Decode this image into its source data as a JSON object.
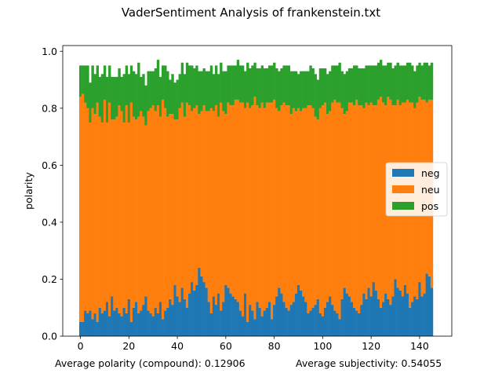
{
  "suptitle": "VaderSentiment Analysis of frankenstein.txt",
  "footer": {
    "polarity_label": "Average polarity (compound): 0.12906",
    "subjectivity_label": "Average subjectivity: 0.54055"
  },
  "chart_data": {
    "type": "bar",
    "stacked": true,
    "title": "VaderSentiment Analysis of frankenstein.txt",
    "xlabel": "",
    "ylabel": "polarity",
    "xlim": [
      -7.3,
      153.3
    ],
    "ylim": [
      0,
      1.02
    ],
    "xticks": [
      0,
      20,
      40,
      60,
      80,
      100,
      120,
      140
    ],
    "yticks": [
      0.0,
      0.2,
      0.4,
      0.6,
      0.8,
      1.0
    ],
    "ytick_labels": [
      "0.0",
      "0.2",
      "0.4",
      "0.6",
      "0.8",
      "1.0"
    ],
    "legend_position": "center-right",
    "grid": false,
    "colors": {
      "neg": "#1f77b4",
      "neu": "#ff7f0e",
      "pos": "#2ca02c"
    },
    "x": [
      0,
      1,
      2,
      3,
      4,
      5,
      6,
      7,
      8,
      9,
      10,
      11,
      12,
      13,
      14,
      15,
      16,
      17,
      18,
      19,
      20,
      21,
      22,
      23,
      24,
      25,
      26,
      27,
      28,
      29,
      30,
      31,
      32,
      33,
      34,
      35,
      36,
      37,
      38,
      39,
      40,
      41,
      42,
      43,
      44,
      45,
      46,
      47,
      48,
      49,
      50,
      51,
      52,
      53,
      54,
      55,
      56,
      57,
      58,
      59,
      60,
      61,
      62,
      63,
      64,
      65,
      66,
      67,
      68,
      69,
      70,
      71,
      72,
      73,
      74,
      75,
      76,
      77,
      78,
      79,
      80,
      81,
      82,
      83,
      84,
      85,
      86,
      87,
      88,
      89,
      90,
      91,
      92,
      93,
      94,
      95,
      96,
      97,
      98,
      99,
      100,
      101,
      102,
      103,
      104,
      105,
      106,
      107,
      108,
      109,
      110,
      111,
      112,
      113,
      114,
      115,
      116,
      117,
      118,
      119,
      120,
      121,
      122,
      123,
      124,
      125,
      126,
      127,
      128,
      129,
      130,
      131,
      132,
      133,
      134,
      135,
      136,
      137,
      138,
      139,
      140,
      141,
      142,
      143,
      144,
      145
    ],
    "series": [
      {
        "name": "neg",
        "values": [
          0.05,
          0.05,
          0.09,
          0.08,
          0.09,
          0.06,
          0.08,
          0.05,
          0.1,
          0.08,
          0.09,
          0.12,
          0.07,
          0.14,
          0.09,
          0.1,
          0.08,
          0.07,
          0.1,
          0.08,
          0.13,
          0.05,
          0.1,
          0.12,
          0.08,
          0.09,
          0.11,
          0.14,
          0.09,
          0.08,
          0.07,
          0.1,
          0.08,
          0.12,
          0.06,
          0.09,
          0.1,
          0.13,
          0.11,
          0.18,
          0.14,
          0.12,
          0.17,
          0.13,
          0.1,
          0.15,
          0.19,
          0.16,
          0.18,
          0.24,
          0.21,
          0.19,
          0.17,
          0.12,
          0.08,
          0.14,
          0.11,
          0.15,
          0.09,
          0.12,
          0.18,
          0.17,
          0.15,
          0.14,
          0.13,
          0.12,
          0.09,
          0.07,
          0.15,
          0.05,
          0.11,
          0.09,
          0.06,
          0.12,
          0.1,
          0.07,
          0.09,
          0.1,
          0.12,
          0.06,
          0.11,
          0.14,
          0.17,
          0.15,
          0.12,
          0.1,
          0.09,
          0.11,
          0.12,
          0.15,
          0.18,
          0.16,
          0.14,
          0.12,
          0.08,
          0.09,
          0.1,
          0.11,
          0.13,
          0.08,
          0.07,
          0.1,
          0.12,
          0.14,
          0.11,
          0.09,
          0.08,
          0.06,
          0.13,
          0.17,
          0.15,
          0.14,
          0.12,
          0.1,
          0.09,
          0.08,
          0.11,
          0.15,
          0.13,
          0.17,
          0.14,
          0.19,
          0.16,
          0.13,
          0.1,
          0.12,
          0.15,
          0.13,
          0.11,
          0.14,
          0.2,
          0.17,
          0.16,
          0.14,
          0.18,
          0.15,
          0.1,
          0.12,
          0.14,
          0.13,
          0.19,
          0.14,
          0.15,
          0.22,
          0.21,
          0.17
        ]
      },
      {
        "name": "neu",
        "values": [
          0.79,
          0.8,
          0.73,
          0.72,
          0.66,
          0.74,
          0.7,
          0.77,
          0.67,
          0.67,
          0.74,
          0.63,
          0.75,
          0.62,
          0.67,
          0.67,
          0.73,
          0.72,
          0.65,
          0.73,
          0.62,
          0.77,
          0.67,
          0.64,
          0.69,
          0.7,
          0.66,
          0.6,
          0.7,
          0.72,
          0.74,
          0.69,
          0.73,
          0.65,
          0.77,
          0.71,
          0.67,
          0.65,
          0.67,
          0.58,
          0.62,
          0.68,
          0.65,
          0.64,
          0.72,
          0.66,
          0.6,
          0.64,
          0.63,
          0.54,
          0.58,
          0.62,
          0.62,
          0.67,
          0.72,
          0.65,
          0.7,
          0.62,
          0.73,
          0.67,
          0.6,
          0.65,
          0.66,
          0.67,
          0.7,
          0.71,
          0.73,
          0.75,
          0.65,
          0.77,
          0.69,
          0.72,
          0.78,
          0.69,
          0.7,
          0.75,
          0.71,
          0.72,
          0.7,
          0.76,
          0.72,
          0.66,
          0.62,
          0.66,
          0.7,
          0.71,
          0.72,
          0.67,
          0.68,
          0.64,
          0.62,
          0.63,
          0.66,
          0.68,
          0.73,
          0.72,
          0.7,
          0.66,
          0.63,
          0.72,
          0.74,
          0.72,
          0.66,
          0.65,
          0.71,
          0.74,
          0.74,
          0.76,
          0.67,
          0.61,
          0.64,
          0.68,
          0.7,
          0.71,
          0.74,
          0.73,
          0.7,
          0.65,
          0.69,
          0.64,
          0.68,
          0.62,
          0.65,
          0.7,
          0.74,
          0.7,
          0.66,
          0.71,
          0.72,
          0.67,
          0.61,
          0.66,
          0.65,
          0.68,
          0.64,
          0.68,
          0.72,
          0.7,
          0.66,
          0.69,
          0.65,
          0.69,
          0.68,
          0.6,
          0.62,
          0.66
        ]
      },
      {
        "name": "pos",
        "values": [
          0.11,
          0.1,
          0.13,
          0.15,
          0.14,
          0.15,
          0.14,
          0.13,
          0.14,
          0.17,
          0.12,
          0.16,
          0.13,
          0.15,
          0.15,
          0.14,
          0.13,
          0.12,
          0.17,
          0.14,
          0.17,
          0.13,
          0.16,
          0.16,
          0.19,
          0.12,
          0.15,
          0.14,
          0.14,
          0.13,
          0.12,
          0.15,
          0.16,
          0.14,
          0.12,
          0.15,
          0.16,
          0.12,
          0.14,
          0.13,
          0.14,
          0.12,
          0.14,
          0.15,
          0.14,
          0.14,
          0.16,
          0.14,
          0.14,
          0.15,
          0.14,
          0.13,
          0.14,
          0.14,
          0.15,
          0.13,
          0.14,
          0.15,
          0.14,
          0.14,
          0.15,
          0.13,
          0.14,
          0.14,
          0.12,
          0.14,
          0.13,
          0.13,
          0.13,
          0.14,
          0.14,
          0.14,
          0.12,
          0.13,
          0.14,
          0.13,
          0.14,
          0.12,
          0.13,
          0.13,
          0.13,
          0.14,
          0.14,
          0.13,
          0.13,
          0.14,
          0.14,
          0.15,
          0.13,
          0.14,
          0.12,
          0.14,
          0.13,
          0.13,
          0.12,
          0.14,
          0.14,
          0.15,
          0.14,
          0.14,
          0.13,
          0.12,
          0.14,
          0.14,
          0.13,
          0.12,
          0.13,
          0.14,
          0.13,
          0.14,
          0.14,
          0.12,
          0.12,
          0.14,
          0.12,
          0.13,
          0.13,
          0.14,
          0.13,
          0.14,
          0.13,
          0.14,
          0.14,
          0.13,
          0.13,
          0.13,
          0.14,
          0.12,
          0.13,
          0.13,
          0.14,
          0.13,
          0.14,
          0.13,
          0.13,
          0.13,
          0.14,
          0.13,
          0.13,
          0.13,
          0.12,
          0.12,
          0.13,
          0.14,
          0.12,
          0.13
        ]
      }
    ]
  }
}
